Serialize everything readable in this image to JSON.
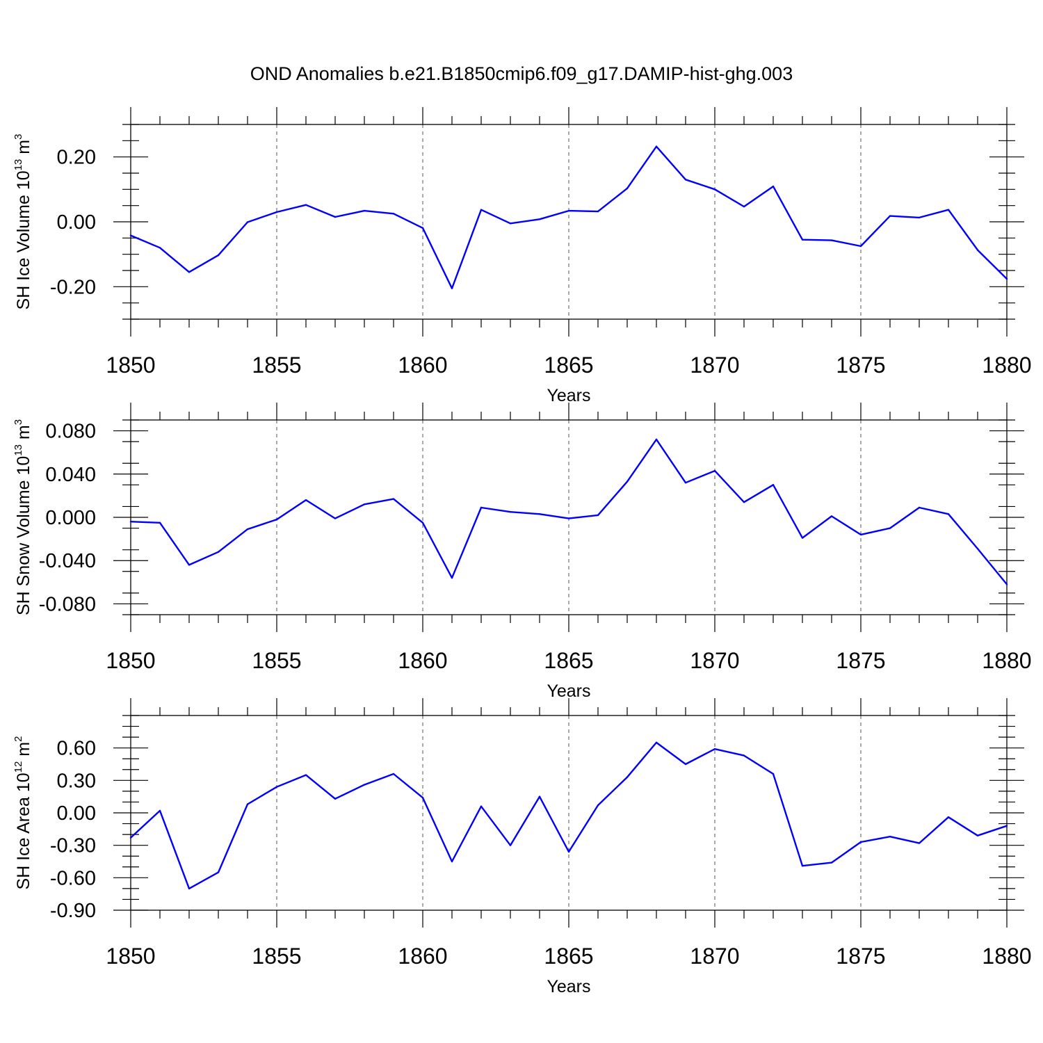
{
  "title": "OND Anomalies b.e21.B1850cmip6.f09_g17.DAMIP-hist-ghg.003",
  "chart_data": [
    {
      "type": "line",
      "ylabel": {
        "text": "SH Ice Volume 10",
        "sup": "13",
        "unit": " m",
        "unit_sup": "3"
      },
      "xlabel": "Years",
      "xlim": [
        1850,
        1880
      ],
      "xticks": [
        1850,
        1855,
        1860,
        1865,
        1870,
        1875,
        1880
      ],
      "xtick_labels": [
        "1850",
        "1855",
        "1860",
        "1865",
        "1870",
        "1875",
        "1880"
      ],
      "ylim": [
        -0.3,
        0.3
      ],
      "yticks": [
        -0.2,
        0.0,
        0.2
      ],
      "ytick_labels": [
        "-0.20",
        "0.00",
        "0.20"
      ],
      "yminor": 0.05,
      "grid": "vertical dashed at major x ticks",
      "x": [
        1850,
        1851,
        1852,
        1853,
        1854,
        1855,
        1856,
        1857,
        1858,
        1859,
        1860,
        1861,
        1862,
        1863,
        1864,
        1865,
        1866,
        1867,
        1868,
        1869,
        1870,
        1871,
        1872,
        1873,
        1874,
        1875,
        1876,
        1877,
        1878,
        1879,
        1880
      ],
      "values": [
        -0.042,
        -0.08,
        -0.155,
        -0.103,
        -0.001,
        0.03,
        0.052,
        0.015,
        0.034,
        0.025,
        -0.019,
        -0.205,
        0.037,
        -0.005,
        0.008,
        0.034,
        0.032,
        0.103,
        0.232,
        0.13,
        0.1,
        0.047,
        0.109,
        -0.055,
        -0.057,
        -0.075,
        0.018,
        0.013,
        0.037,
        -0.087,
        -0.176
      ],
      "color": "#0000ff"
    },
    {
      "type": "line",
      "ylabel": {
        "text": "SH Snow Volume 10",
        "sup": "13",
        "unit": " m",
        "unit_sup": "3"
      },
      "xlabel": "Years",
      "xlim": [
        1850,
        1880
      ],
      "xticks": [
        1850,
        1855,
        1860,
        1865,
        1870,
        1875,
        1880
      ],
      "xtick_labels": [
        "1850",
        "1855",
        "1860",
        "1865",
        "1870",
        "1875",
        "1880"
      ],
      "ylim": [
        -0.09,
        0.09
      ],
      "yticks": [
        -0.08,
        -0.04,
        0.0,
        0.04,
        0.08
      ],
      "ytick_labels": [
        "-0.080",
        "-0.040",
        "0.000",
        "0.040",
        "0.080"
      ],
      "yminor": 0.02,
      "grid": "vertical dashed at major x ticks",
      "x": [
        1850,
        1851,
        1852,
        1853,
        1854,
        1855,
        1856,
        1857,
        1858,
        1859,
        1860,
        1861,
        1862,
        1863,
        1864,
        1865,
        1866,
        1867,
        1868,
        1869,
        1870,
        1871,
        1872,
        1873,
        1874,
        1875,
        1876,
        1877,
        1878,
        1879,
        1880
      ],
      "values": [
        -0.004,
        -0.005,
        -0.044,
        -0.032,
        -0.011,
        -0.002,
        0.016,
        -0.001,
        0.012,
        0.017,
        -0.005,
        -0.056,
        0.009,
        0.005,
        0.003,
        -0.001,
        0.002,
        0.033,
        0.072,
        0.032,
        0.043,
        0.014,
        0.03,
        -0.019,
        0.001,
        -0.016,
        -0.01,
        0.009,
        0.003,
        -0.029,
        -0.062
      ],
      "color": "#0000ff"
    },
    {
      "type": "line",
      "ylabel": {
        "text": "SH Ice Area 10",
        "sup": "12",
        "unit": " m",
        "unit_sup": "2"
      },
      "xlabel": "Years",
      "xlim": [
        1850,
        1880
      ],
      "xticks": [
        1850,
        1855,
        1860,
        1865,
        1870,
        1875,
        1880
      ],
      "xtick_labels": [
        "1850",
        "1855",
        "1860",
        "1865",
        "1870",
        "1875",
        "1880"
      ],
      "ylim": [
        -0.9,
        0.9
      ],
      "yticks": [
        -0.9,
        -0.6,
        -0.3,
        0.0,
        0.3,
        0.6
      ],
      "ytick_labels": [
        "-0.90",
        "-0.60",
        "-0.30",
        "0.00",
        "0.30",
        "0.60"
      ],
      "yminor": 0.1,
      "grid": "vertical dashed at major x ticks",
      "x": [
        1850,
        1851,
        1852,
        1853,
        1854,
        1855,
        1856,
        1857,
        1858,
        1859,
        1860,
        1861,
        1862,
        1863,
        1864,
        1865,
        1866,
        1867,
        1868,
        1869,
        1870,
        1871,
        1872,
        1873,
        1874,
        1875,
        1876,
        1877,
        1878,
        1879,
        1880
      ],
      "values": [
        -0.23,
        0.02,
        -0.7,
        -0.55,
        0.08,
        0.24,
        0.35,
        0.13,
        0.26,
        0.36,
        0.14,
        -0.45,
        0.06,
        -0.3,
        0.15,
        -0.36,
        0.07,
        0.33,
        0.65,
        0.45,
        0.59,
        0.53,
        0.36,
        -0.49,
        -0.46,
        -0.27,
        -0.22,
        -0.28,
        -0.04,
        -0.21,
        -0.12
      ],
      "color": "#0000ff"
    }
  ]
}
